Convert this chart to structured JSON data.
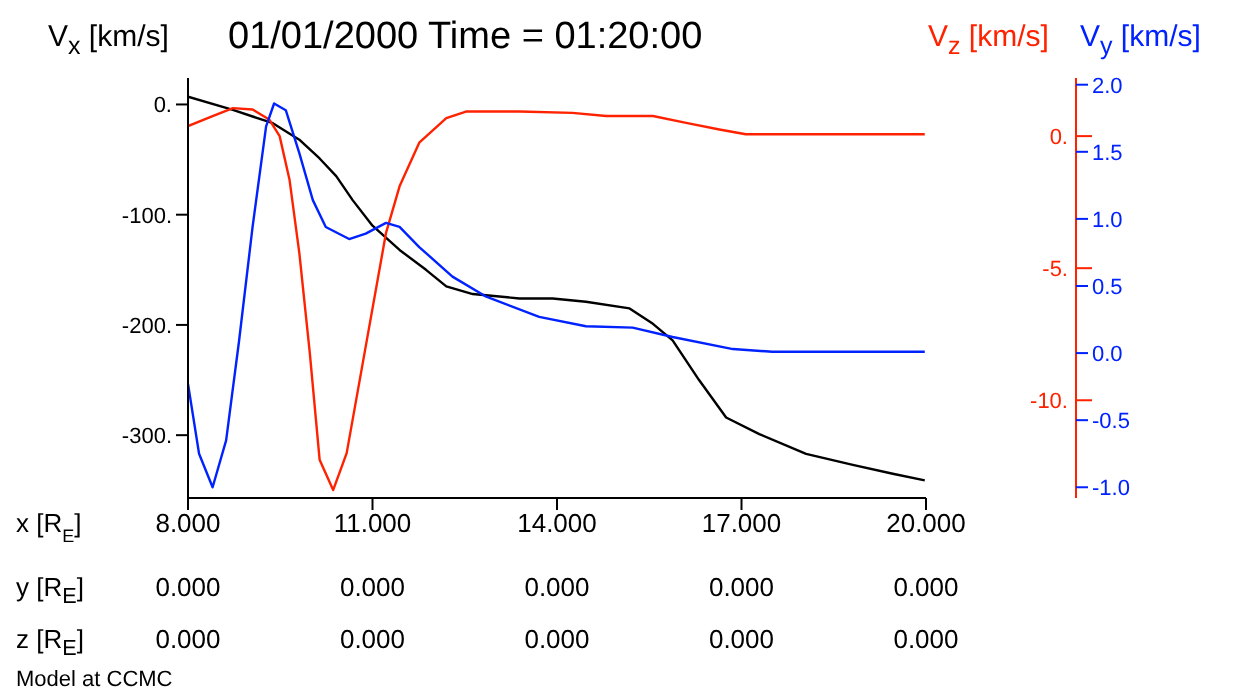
{
  "chart_data": {
    "type": "line",
    "title": "01/01/2000 Time = 01:20:00",
    "ylabel": "V$_{x}$ [km/s]",
    "y2label": "V$_{z}$ [km/s]",
    "y3label": "V$_{y}$ [km/s]",
    "xlabel": "x [R$_{E}$]",
    "xlim": [
      8,
      20
    ],
    "xticks": [
      {
        "value": 8,
        "label": "8.000"
      },
      {
        "value": 11,
        "label": "11.000"
      },
      {
        "value": 14,
        "label": "14.000"
      },
      {
        "value": 17,
        "label": "17.000"
      },
      {
        "value": 20,
        "label": "20.000"
      }
    ],
    "ylim": [
      -357,
      24
    ],
    "yticks": [
      {
        "value": 0,
        "label": "0."
      },
      {
        "value": -100,
        "label": "-100."
      },
      {
        "value": -200,
        "label": "-200."
      },
      {
        "value": -300,
        "label": "-300."
      }
    ],
    "y2lim": [
      -13.7,
      2.2
    ],
    "y2ticks": [
      {
        "value": 0,
        "label": "0."
      },
      {
        "value": -5,
        "label": "-5."
      },
      {
        "value": -10,
        "label": "-10."
      }
    ],
    "y3lim": [
      -1.08,
      2.05
    ],
    "y3ticks": [
      {
        "value": 2,
        "label": "2.0"
      },
      {
        "value": 1.5,
        "label": "1.5"
      },
      {
        "value": 1,
        "label": "1.0"
      },
      {
        "value": 0.5,
        "label": "0.5"
      },
      {
        "value": 0,
        "label": "0.0"
      },
      {
        "value": -0.5,
        "label": "-0.5"
      },
      {
        "value": -1,
        "label": "-1.0"
      }
    ],
    "marker": "none",
    "line_style": "solid",
    "annotations": [
      "y [R$_{E}$]",
      "0.000",
      "0.000",
      "0.000",
      "0.000",
      "0.000",
      "z [R$_{E}$]",
      "0.000",
      "0.000",
      "0.000",
      "0.000",
      "0.000",
      "Model at CCMC"
    ],
    "series": [
      {
        "color": "#000000",
        "x": [
          8.0,
          8.73,
          9.38,
          9.81,
          10.14,
          10.41,
          10.68,
          11.0,
          11.44,
          11.87,
          12.2,
          12.63,
          13.39,
          13.93,
          14.47,
          15.18,
          15.56,
          15.88,
          16.31,
          16.75,
          17.29,
          18.05,
          18.81,
          19.46,
          19.98
        ],
        "values": [
          7,
          -5,
          -17,
          -32,
          -49,
          -65,
          -87,
          -110,
          -132,
          -150,
          -165,
          -172,
          -176,
          -176,
          -179,
          -185,
          -199,
          -214,
          -250,
          -284,
          -299,
          -317,
          -327,
          -335,
          -341
        ]
      },
      {
        "color": "#ff2200",
        "axis": "y2",
        "x": [
          8.0,
          8.4,
          8.73,
          9.05,
          9.32,
          9.49,
          9.65,
          9.81,
          9.98,
          10.14,
          10.36,
          10.58,
          10.89,
          11.22,
          11.44,
          11.76,
          12.2,
          12.52,
          13.39,
          14.25,
          14.8,
          15.56,
          16.1,
          16.64,
          17.07,
          19.98
        ],
        "values": [
          0.38,
          0.76,
          1.06,
          1.01,
          0.63,
          0,
          -1.64,
          -4.42,
          -8.2,
          -12.25,
          -13.4,
          -12.0,
          -7.96,
          -3.66,
          -1.9,
          -0.25,
          0.68,
          0.93,
          0.93,
          0.88,
          0.76,
          0.76,
          0.5,
          0.25,
          0.07,
          0.07
        ]
      },
      {
        "color": "#0022ff",
        "axis": "y3",
        "x": [
          8.0,
          8.18,
          8.4,
          8.62,
          8.83,
          9.05,
          9.27,
          9.4,
          9.59,
          9.81,
          10.03,
          10.24,
          10.62,
          10.89,
          11.22,
          11.44,
          11.76,
          12.3,
          12.85,
          13.71,
          14.47,
          15.23,
          15.88,
          16.86,
          17.5,
          19.98
        ],
        "values": [
          -0.23,
          -0.75,
          -1.0,
          -0.65,
          0.09,
          0.94,
          1.69,
          1.86,
          1.81,
          1.49,
          1.14,
          0.94,
          0.85,
          0.89,
          0.97,
          0.94,
          0.79,
          0.57,
          0.42,
          0.27,
          0.2,
          0.19,
          0.12,
          0.03,
          0.01,
          0.01
        ]
      }
    ]
  }
}
